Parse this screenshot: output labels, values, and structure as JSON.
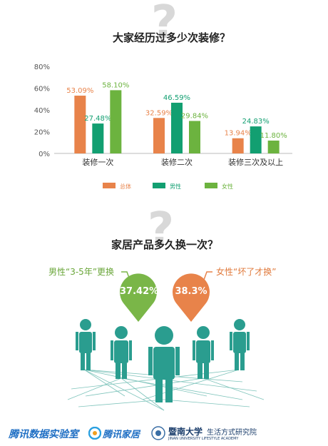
{
  "section1": {
    "title": "大家经历过多少次装修？",
    "qmark": "?"
  },
  "chart_data": {
    "type": "bar",
    "title": "大家经历过多少次装修？",
    "categories": [
      "装修一次",
      "装修二次",
      "装修三次及以上"
    ],
    "series": [
      {
        "name": "总体",
        "values": [
          53.09,
          32.59,
          13.94
        ],
        "labels": [
          "53.09%",
          "32.59%",
          "13.94%"
        ],
        "color": "#e8834a"
      },
      {
        "name": "男性",
        "values": [
          27.48,
          46.59,
          24.83
        ],
        "labels": [
          "27.48%",
          "46.59%",
          "24.83%"
        ],
        "color": "#129f71"
      },
      {
        "name": "女性",
        "values": [
          58.1,
          29.84,
          11.8
        ],
        "labels": [
          "58.10%",
          "29.84%",
          "11.80%"
        ],
        "color": "#6cb33f"
      }
    ],
    "yticks": [
      "0%",
      "20%",
      "40%",
      "60%",
      "80%"
    ],
    "ylim": [
      0,
      80
    ],
    "grid": false,
    "legend_position": "bottom"
  },
  "section2": {
    "title": "家居产品多久换一次？",
    "qmark": "?",
    "male": {
      "label": "男性“3-5年”更换",
      "value": "37.42%",
      "color": "#7ab648"
    },
    "female": {
      "label": "女性“坏了才换”",
      "value": "38.3%",
      "color": "#e8834a"
    },
    "people_color": "#2a9d8f"
  },
  "footer": {
    "lab": "腾讯数据实验室",
    "home": "腾讯家居",
    "jinan_cn": "暨南大学",
    "jinan_inst": "生活方式研究院",
    "jinan_en": "JINAN UNIVERSITY LIFESTYLE ACADEMY"
  }
}
